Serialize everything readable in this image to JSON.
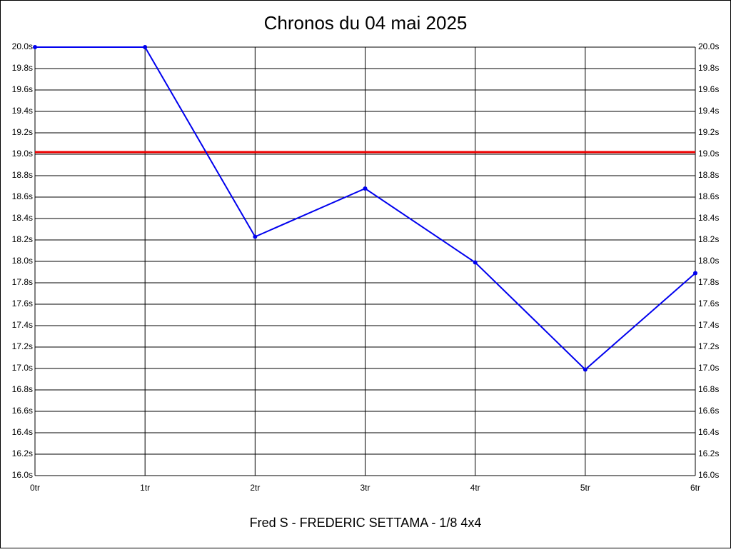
{
  "chart_data": {
    "type": "line",
    "title": "Chronos du 04 mai 2025",
    "xlabel": "Fred S - FREDERIC SETTAMA - 1/8 4x4",
    "categories": [
      "0tr",
      "1tr",
      "2tr",
      "3tr",
      "4tr",
      "5tr",
      "6tr"
    ],
    "series": [
      {
        "color": "#0000ee",
        "values": [
          20.0,
          20.0,
          18.23,
          18.68,
          17.99,
          16.99,
          17.89
        ]
      }
    ],
    "reference_line": {
      "value": 19.02,
      "color": "#ee0000"
    },
    "ylim": [
      16.0,
      20.0
    ],
    "yticks": [
      {
        "value": 16.0,
        "label": "16.0s"
      },
      {
        "value": 16.2,
        "label": "16.2s"
      },
      {
        "value": 16.4,
        "label": "16.4s"
      },
      {
        "value": 16.6,
        "label": "16.6s"
      },
      {
        "value": 16.8,
        "label": "16.8s"
      },
      {
        "value": 17.0,
        "label": "17.0s"
      },
      {
        "value": 17.2,
        "label": "17.2s"
      },
      {
        "value": 17.4,
        "label": "17.4s"
      },
      {
        "value": 17.6,
        "label": "17.6s"
      },
      {
        "value": 17.8,
        "label": "17.8s"
      },
      {
        "value": 18.0,
        "label": "18.0s"
      },
      {
        "value": 18.2,
        "label": "18.2s"
      },
      {
        "value": 18.4,
        "label": "18.4s"
      },
      {
        "value": 18.6,
        "label": "18.6s"
      },
      {
        "value": 18.8,
        "label": "18.8s"
      },
      {
        "value": 19.0,
        "label": "19.0s"
      },
      {
        "value": 19.2,
        "label": "19.2s"
      },
      {
        "value": 19.4,
        "label": "19.4s"
      },
      {
        "value": 19.6,
        "label": "19.6s"
      },
      {
        "value": 19.8,
        "label": "19.8s"
      },
      {
        "value": 20.0,
        "label": "20.0s"
      }
    ],
    "grid": true
  }
}
